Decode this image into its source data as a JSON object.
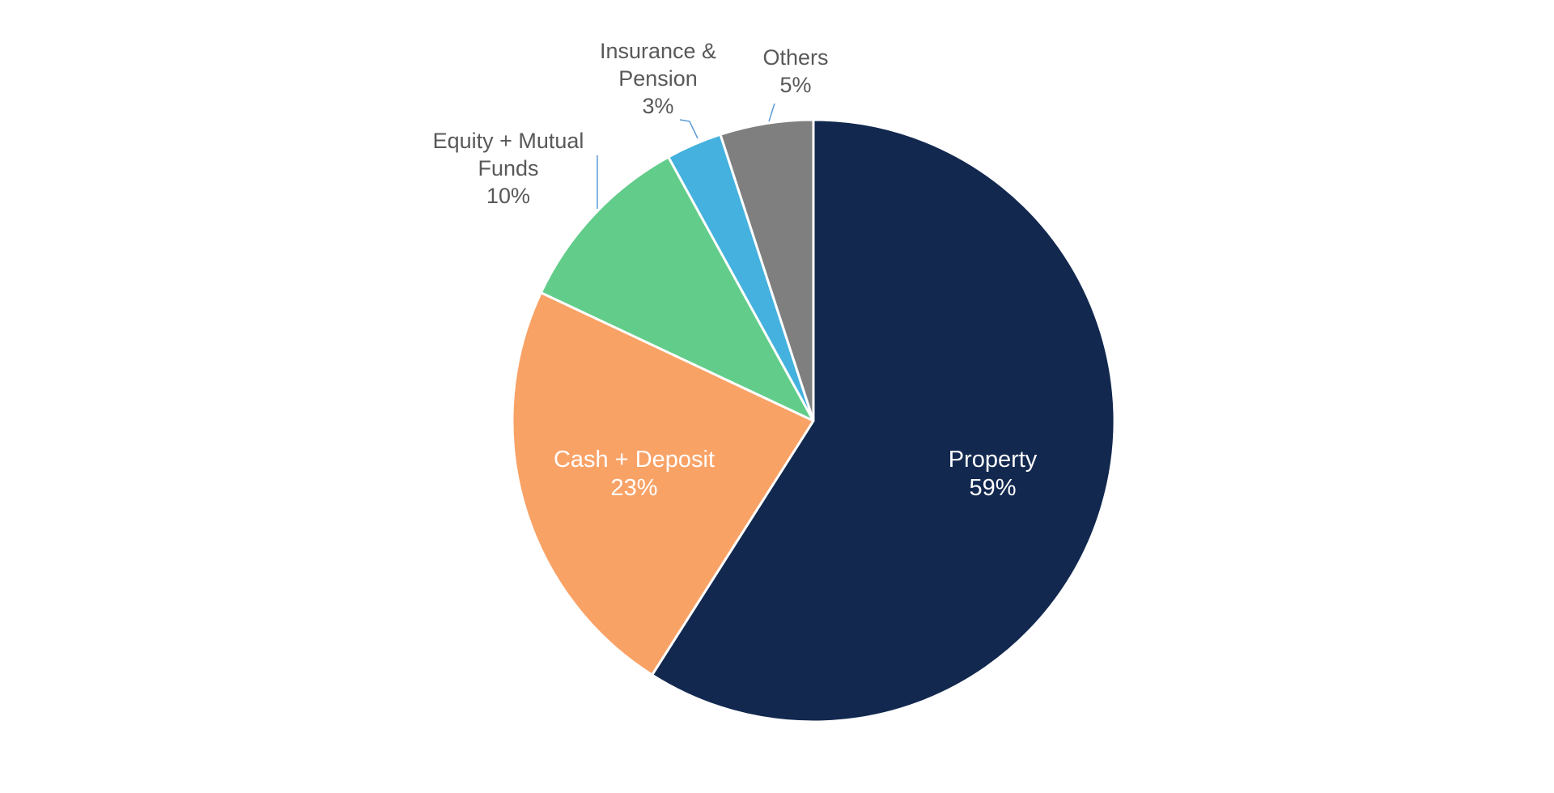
{
  "chart_data": {
    "type": "pie",
    "start_angle_deg": 0,
    "direction": "clockwise",
    "slice_border_color": "#ffffff",
    "leader_line_color": "#5b9bd5",
    "slices": [
      {
        "name_lines": [
          "Property"
        ],
        "value": 59,
        "pct_label": "59%",
        "color": "#12284f",
        "label_position": "inside"
      },
      {
        "name_lines": [
          "Cash + Deposit"
        ],
        "value": 23,
        "pct_label": "23%",
        "color": "#f9a266",
        "label_position": "inside"
      },
      {
        "name_lines": [
          "Equity + Mutual",
          "Funds"
        ],
        "value": 10,
        "pct_label": "10%",
        "color": "#62cd8a",
        "label_position": "outside"
      },
      {
        "name_lines": [
          "Insurance &",
          "Pension"
        ],
        "value": 3,
        "pct_label": "3%",
        "color": "#44b1de",
        "label_position": "outside"
      },
      {
        "name_lines": [
          "Others"
        ],
        "value": 5,
        "pct_label": "5%",
        "color": "#7f7f7f",
        "label_position": "outside"
      }
    ]
  }
}
